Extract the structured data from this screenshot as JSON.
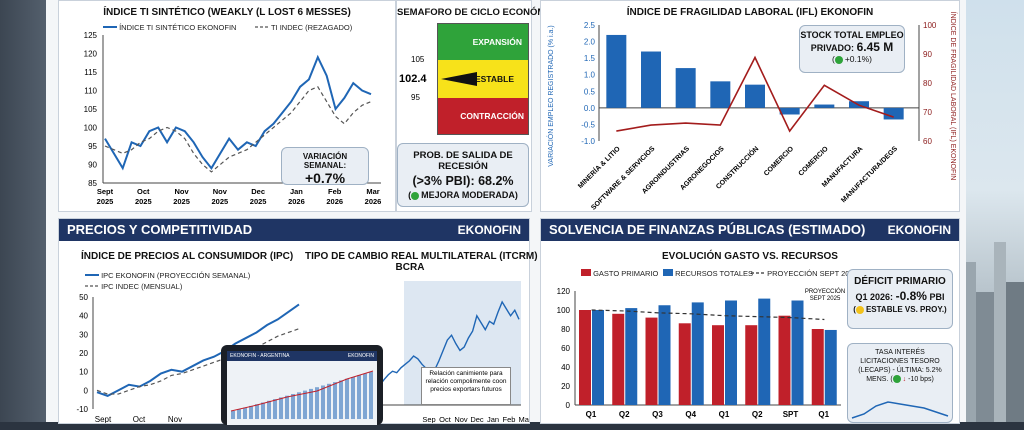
{
  "colors": {
    "navy": "#1f3564",
    "blue": "#1f66b5",
    "red": "#c0202a",
    "darkred": "#8b1a1a",
    "green": "#2fa33a",
    "yellow": "#f7e21a"
  },
  "ti": {
    "title": "ÍNDICE TI SINTÉTICO (WEAKLY (L LOST 6 MESSES)",
    "legend_a": "ÍNDICE TI SINTÉTICO EKONOFIN",
    "legend_b": "TI INDEC (REZAGADO)",
    "var_label": "VARIACIÓN SEMANAL:",
    "var_value": "+0.7%"
  },
  "semaforo": {
    "title": "SEMAFORO DE CICLO ECONÓMICO",
    "expansion": "EXPANSIÓN",
    "estable": "ESTABLE",
    "contraccion": "CONTRACCIÓN",
    "tick_105": "105",
    "value": "102.4",
    "tick_95": "95",
    "prob_l1": "PROB. DE SALIDA DE RECESIÓN",
    "prob_l2": "(>3% PBI): 68.2%",
    "prob_l3": "MEJORA MODERADA"
  },
  "ifl": {
    "title": "ÍNDICE DE FRAGILIDAD LABORAL (IFL) EKONOFIN",
    "ylabel_left": "VARIACIÓN EMPLEO REGISTRADO (% i.a.)",
    "ylabel_right": "ÍNDICE DE FRAGILIDAD LABORAL (IFL) EKONOFIN",
    "stock_l1": "STOCK TOTAL EMPLEO",
    "stock_l2": "PRIVADO:",
    "stock_value": "6.45 M",
    "stock_change": "+0.1%)"
  },
  "precios": {
    "header": "PRECIOS Y COMPETITIVIDAD",
    "brand": "EKONOFIN",
    "ipc_title": "ÍNDICE DE PRECIOS AL CONSUMIDOR (IPC)",
    "ipc_legend_a": "IPC EKONOFIN (PROYECCIÓN SEMANAL)",
    "ipc_legend_b": "IPC INDEC (MENSUAL)",
    "tcr_title_l1": "TIPO DE CAMBIO REAL MULTILATERAL (ITCRM)",
    "tcr_title_l2": "BCRA",
    "tcr_note": "Relación canimiente para relación compolimente coon precios exportars futuros",
    "laptop_l": "EKONOFIN - ARGENTINA",
    "laptop_r": "EKONOFIN"
  },
  "solvencia": {
    "header": "SOLVENCIA DE FINANZAS PÚBLICAS (ESTIMADO)",
    "brand": "EKONOFIN",
    "title": "EVOLUCIÓN GASTO VS. RECURSOS",
    "legend_a": "GASTO PRIMARIO",
    "legend_b": "RECURSOS TOTALES",
    "legend_c": "PROYECCIÓN SEPT 2025",
    "proj_label": "PROYECCIÓN SEPT 2025",
    "deficit_title": "DÉFICIT PRIMARIO",
    "deficit_l2": "Q1 2026:",
    "deficit_value": "-0.8%",
    "deficit_unit": "PBI",
    "deficit_status": "ESTABLE VS. PROY.)",
    "tasa_l1": "TASA INTERÉS",
    "tasa_l2": "LICITACIONES TESORO",
    "tasa_l3": "(LECAPS) - ÚLTIMA: 5.2%",
    "tasa_l4": "MENS.",
    "tasa_l5": "-10 bps)"
  },
  "chart_data": [
    {
      "type": "line",
      "title": "ÍNDICE TI SINTÉTICO (WEAKLY (L LOST 6 MESSES)",
      "x_ticks": [
        "Sept 2025",
        "Oct 2025",
        "Nov 2025",
        "Nov 2025",
        "Dec 2025",
        "Jan 2026",
        "Feb 2026",
        "Mar 2026"
      ],
      "ylim": [
        85,
        125
      ],
      "y_ticks": [
        85,
        90,
        95,
        100,
        105,
        110,
        115,
        120,
        125
      ],
      "series": [
        {
          "name": "ÍNDICE TI SINTÉTICO EKONOFIN",
          "values": [
            97,
            93,
            89,
            96,
            95,
            99,
            100,
            96,
            100,
            99,
            96,
            92,
            89,
            93,
            97,
            94,
            96,
            95,
            99,
            101,
            104,
            107,
            111,
            113,
            119,
            114,
            105,
            108,
            112,
            110,
            109
          ]
        },
        {
          "name": "TI INDEC (REZAGADO)",
          "values": [
            95,
            94,
            93,
            94,
            96,
            97,
            99,
            100,
            99,
            97,
            93,
            90,
            88,
            90,
            92,
            93,
            94,
            96,
            98,
            100,
            102,
            104,
            107,
            110,
            111,
            107,
            103,
            101,
            104,
            106,
            107
          ]
        }
      ]
    },
    {
      "type": "bar",
      "title": "ÍNDICE DE FRAGILIDAD LABORAL (IFL) EKONOFIN",
      "categories": [
        "MINERÍA & LITIO",
        "SOFTWARE & SERVICIOS",
        "AGROINDUSTRIAS",
        "AGRONEGOCIOS",
        "CONSTRUCCIÓN",
        "COMERCIO",
        "COMERCIO",
        "MANUFACTURA",
        "MANUFACTURA/DEGS"
      ],
      "ylim": [
        -1.0,
        2.5
      ],
      "y_ticks": [
        -1.0,
        -0.5,
        0,
        0.5,
        1.0,
        1.5,
        2.0,
        2.5
      ],
      "y2lim": [
        60,
        100
      ],
      "y2_ticks": [
        60,
        70,
        80,
        90,
        100
      ],
      "series": [
        {
          "name": "VARIACIÓN EMPLEO REGISTRADO (% i.a.)",
          "values": [
            2.2,
            1.7,
            1.2,
            0.8,
            0.7,
            -0.2,
            0.1,
            0.2,
            -0.35
          ]
        },
        {
          "name": "ÍNDICE DE FRAGILIDAD LABORAL (IFL) EKONOFIN",
          "values": [
            5,
            8,
            9,
            8,
            42,
            5,
            28,
            18,
            12
          ]
        }
      ]
    },
    {
      "type": "line",
      "title": "ÍNDICE DE PRECIOS AL CONSUMIDOR (IPC)",
      "x_ticks": [
        "Sept",
        "Oct",
        "Nov",
        "Dic",
        "Jan",
        "Feb",
        "Mar"
      ],
      "ylim": [
        -10,
        50
      ],
      "y_ticks": [
        -10,
        0,
        10,
        20,
        30,
        40,
        50
      ],
      "series": [
        {
          "name": "IPC EKONOFIN (PROYECCIÓN SEMANAL)",
          "values": [
            -1,
            -3,
            0,
            3,
            2,
            5,
            9,
            11,
            10,
            13,
            16,
            18,
            21,
            25,
            28,
            31,
            35,
            38,
            42,
            46
          ]
        },
        {
          "name": "IPC INDEC (MENSUAL)",
          "values": [
            0,
            -2,
            -2,
            0,
            2,
            3,
            5,
            8,
            9,
            11,
            13,
            15,
            17,
            19,
            21,
            23,
            26,
            29,
            31,
            33
          ]
        }
      ]
    },
    {
      "type": "line",
      "title": "TIPO DE CAMBIO REAL MULTILATERAL (ITCRM) BCRA",
      "x_ticks": [
        "Sep",
        "Oct",
        "Nov",
        "Dec",
        "Jan",
        "Feb",
        "Mar"
      ],
      "series": [
        {
          "name": "ITCRM",
          "values": [
            10,
            12,
            11,
            15,
            20,
            28,
            35,
            40,
            38,
            45,
            50,
            55,
            62,
            58,
            50,
            44,
            40,
            42,
            55,
            70,
            85,
            92,
            80,
            70,
            75,
            88,
            98,
            120,
            110,
            100,
            112,
            108,
            125,
            140,
            130,
            120,
            128,
            115
          ]
        }
      ]
    },
    {
      "type": "bar",
      "title": "EVOLUCIÓN GASTO VS. RECURSOS",
      "categories": [
        "Q1",
        "Q2",
        "Q3",
        "Q4",
        "Q1",
        "Q2",
        "SPT",
        "Q1"
      ],
      "ylim": [
        0,
        120
      ],
      "y_ticks": [
        0,
        20,
        40,
        60,
        80,
        100,
        120
      ],
      "series": [
        {
          "name": "GASTO PRIMARIO",
          "values": [
            100,
            96,
            92,
            86,
            84,
            84,
            94,
            80
          ]
        },
        {
          "name": "RECURSOS TOTALES",
          "values": [
            100,
            102,
            105,
            108,
            110,
            112,
            110,
            79
          ]
        },
        {
          "name": "PROYECCIÓN SEPT 2025",
          "values": [
            100,
            99,
            97,
            96,
            94,
            93,
            92,
            90
          ]
        }
      ]
    }
  ]
}
